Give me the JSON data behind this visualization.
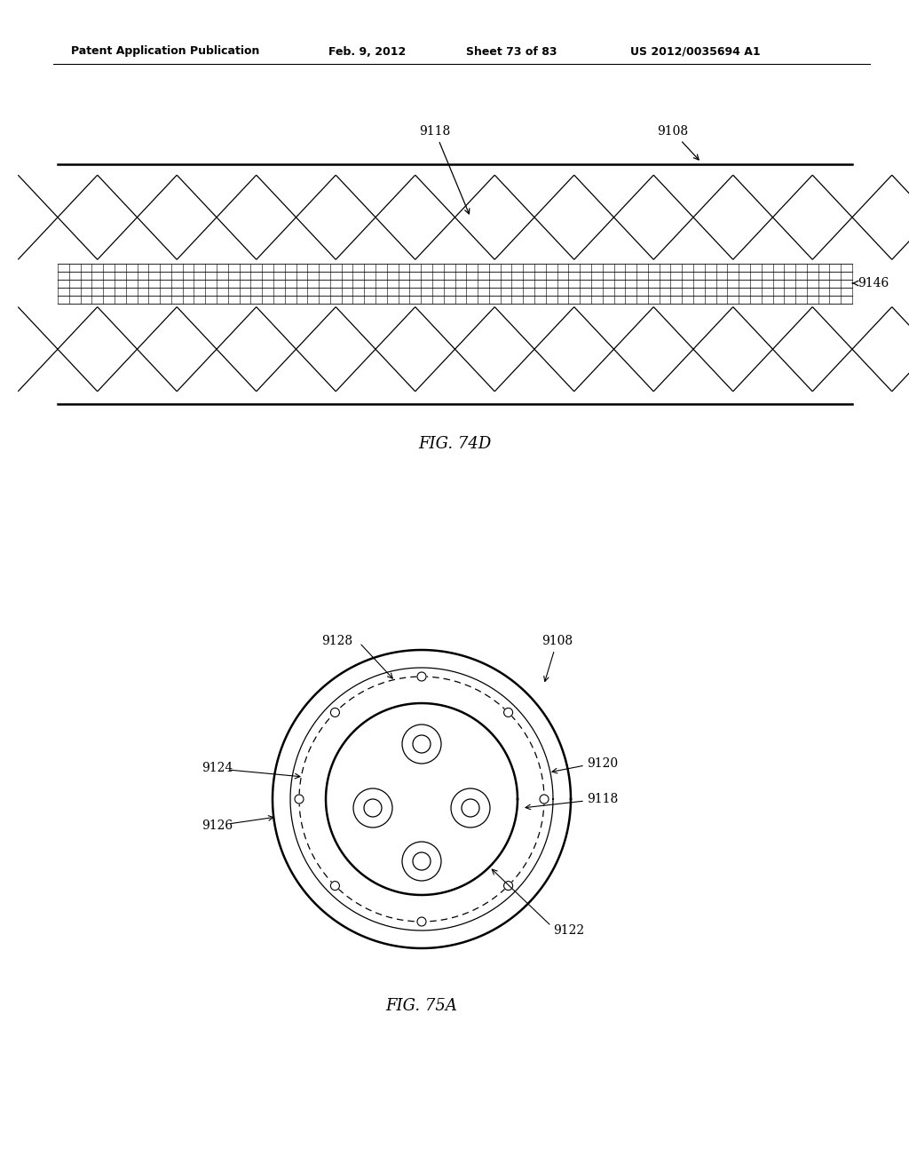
{
  "bg_color": "#ffffff",
  "line_color": "#000000",
  "header_text": "Patent Application Publication",
  "header_date": "Feb. 9, 2012",
  "header_sheet": "Sheet 73 of 83",
  "header_patent": "US 2012/0035694 A1",
  "fig74d_label": "FIG. 74D",
  "fig75a_label": "FIG. 75A",
  "lw_thick": 1.8,
  "lw_thin": 0.9,
  "lw_grid": 0.6
}
